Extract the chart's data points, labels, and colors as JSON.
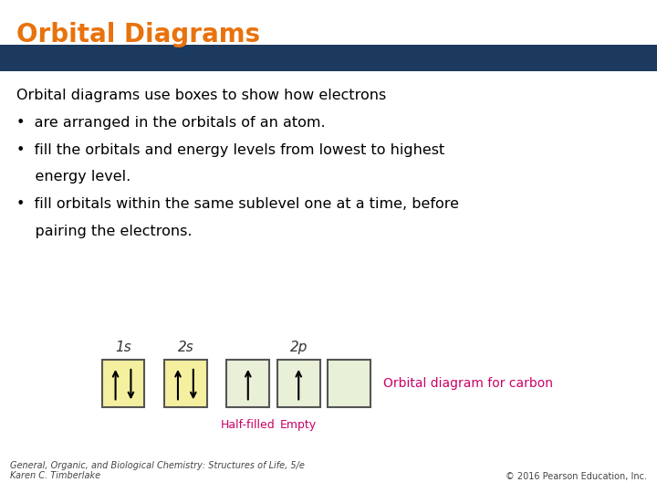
{
  "title": "Orbital Diagrams",
  "title_color": "#E8720C",
  "header_bar_color": "#1C3A5E",
  "body_text_lines": [
    "Orbital diagrams use boxes to show how electrons",
    "•  are arranged in the orbitals of an atom.",
    "•  fill the orbitals and energy levels from lowest to highest",
    "    energy level.",
    "•  fill orbitals within the same sublevel one at a time, before",
    "    pairing the electrons."
  ],
  "footer_left": "General, Organic, and Biological Chemistry: Structures of Life, 5/e\nKaren C. Timberlake",
  "footer_right": "© 2016 Pearson Education, Inc.",
  "bg_color": "#ffffff",
  "orbital_diagram": {
    "box_filled_color": "#F5F0A0",
    "box_half_color": "#E8F0D8",
    "box_empty_color": "#E8F0D8",
    "box_border": "#555555",
    "arrow_color": "#000000",
    "sublabel_color": "#CC0066",
    "orbital_label_color": "#333333"
  }
}
